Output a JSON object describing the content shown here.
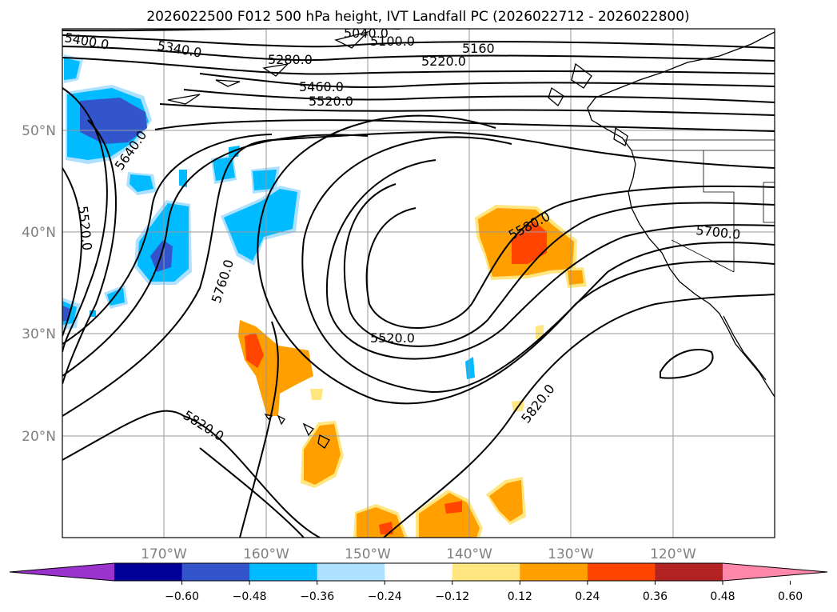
{
  "chart_data": {
    "type": "contour_map",
    "title": "2026022500 F012 500 hPa height, IVT Landfall PC (2026022712 - 2026022800)",
    "x_ticks": [
      "170°W",
      "160°W",
      "150°W",
      "140°W",
      "130°W",
      "120°W"
    ],
    "x_tick_values": [
      -170,
      -160,
      -150,
      -140,
      -130,
      -120
    ],
    "y_ticks": [
      "20°N",
      "30°N",
      "40°N",
      "50°N"
    ],
    "y_tick_values": [
      20,
      30,
      40,
      50
    ],
    "lon_range": [
      -180,
      -110
    ],
    "lat_range": [
      10,
      60
    ],
    "grid": true,
    "contour_labels": [
      "5400.0",
      "5340.0",
      "5280.0",
      "5460.0",
      "5520.0",
      "5640.0",
      "5520.0",
      "5760.0",
      "5520.0",
      "5580.0",
      "5700.0",
      "5820.0",
      "5820.0",
      "5100.0",
      "5220.0",
      "5160",
      "5040.0"
    ],
    "colorbar": {
      "ticks": [
        "−0.60",
        "−0.48",
        "−0.36",
        "−0.24",
        "−0.12",
        "0.12",
        "0.24",
        "0.36",
        "0.48",
        "0.60"
      ],
      "tick_values": [
        -0.6,
        -0.48,
        -0.36,
        -0.24,
        -0.12,
        0.12,
        0.24,
        0.36,
        0.48,
        0.6
      ],
      "colors": [
        "#9933cc",
        "#000099",
        "#3355cc",
        "#00bbff",
        "#aee0ff",
        "#ffffff",
        "#ffe680",
        "#ff9f00",
        "#ff4500",
        "#b22222",
        "#ff88aa"
      ],
      "extend": "both"
    }
  }
}
